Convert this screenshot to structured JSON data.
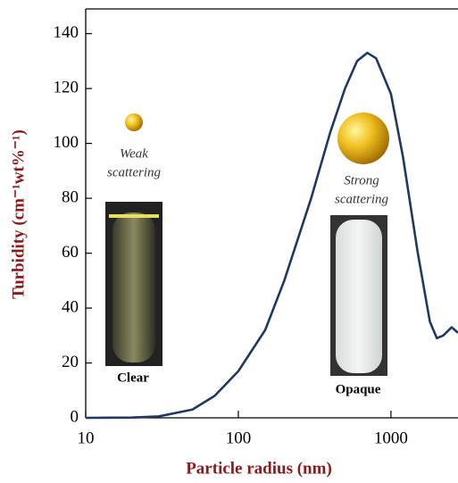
{
  "chart_data": {
    "type": "line",
    "x_label": "Particle radius (nm)",
    "y_label": "Turbidity (cm⁻¹wt%⁻¹)",
    "x": [
      10,
      20,
      30,
      50,
      70,
      100,
      150,
      200,
      300,
      400,
      500,
      600,
      700,
      800,
      1000,
      1200,
      1500,
      1800,
      2000,
      2200,
      2500,
      2750
    ],
    "series": [
      {
        "color": "#1f3864",
        "values": [
          0,
          0.1,
          0.5,
          3,
          8,
          17,
          32,
          50,
          80,
          104,
          120,
          130,
          133,
          131,
          118,
          95,
          60,
          35,
          29,
          30,
          33,
          31
        ]
      }
    ],
    "x_log": true,
    "xlim": [
      10,
      2750
    ],
    "xticks": [
      10,
      100,
      1000
    ],
    "ylim": [
      0,
      149
    ],
    "yticks": [
      0,
      20,
      40,
      60,
      80,
      100,
      120,
      140
    ],
    "annotations": [
      "Weak",
      "scattering",
      "Strong",
      "scattering",
      "Clear",
      "Opaque"
    ]
  }
}
